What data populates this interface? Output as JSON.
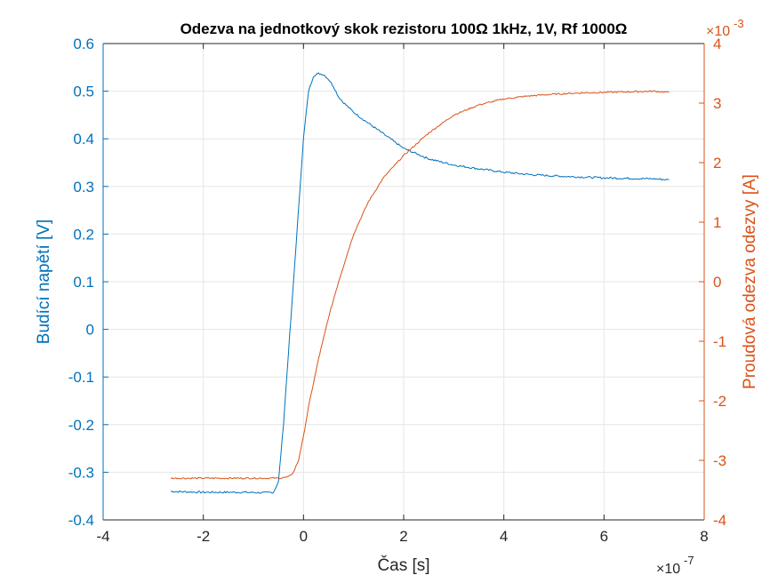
{
  "chart_data": {
    "type": "line",
    "title": "Odezva na jednotkový skok rezistoru 100Ω 1kHz, 1V, Rf 1000Ω",
    "xlabel": "Čas [s]",
    "x_exponent": "×10",
    "x_exponent_power": "-7",
    "xlim": [
      -4,
      8
    ],
    "x_ticks": [
      "-4",
      "-2",
      "0",
      "2",
      "4",
      "6",
      "8"
    ],
    "grid": true,
    "y_left": {
      "label": "Budící napětí [V]",
      "color": "#0072BD",
      "ylim": [
        -0.4,
        0.6
      ],
      "ticks": [
        "0.6",
        "0.5",
        "0.4",
        "0.3",
        "0.2",
        "0.1",
        "0",
        "-0.1",
        "-0.2",
        "-0.3",
        "-0.4"
      ]
    },
    "y_right": {
      "label": "Proudová odezva odezvy [A]",
      "color": "#D95319",
      "exponent": "×10",
      "exponent_power": "-3",
      "ylim": [
        -4,
        4
      ],
      "ticks": [
        "4",
        "3",
        "2",
        "1",
        "0",
        "-1",
        "-2",
        "-3",
        "-4"
      ]
    },
    "series": [
      {
        "axis": "left",
        "color": "#0072BD",
        "x": [
          -2.65,
          -2.4,
          -2.0,
          -1.6,
          -1.2,
          -0.8,
          -0.6,
          -0.5,
          -0.4,
          -0.3,
          -0.2,
          -0.1,
          0.0,
          0.1,
          0.2,
          0.3,
          0.4,
          0.5,
          0.6,
          0.7,
          0.8,
          1.0,
          1.2,
          1.4,
          1.6,
          1.8,
          2.0,
          2.5,
          3.0,
          3.5,
          4.0,
          4.5,
          5.0,
          5.5,
          6.0,
          6.5,
          7.0,
          7.3
        ],
        "y": [
          -0.34,
          -0.341,
          -0.342,
          -0.342,
          -0.342,
          -0.343,
          -0.342,
          -0.32,
          -0.2,
          -0.05,
          0.1,
          0.25,
          0.4,
          0.5,
          0.532,
          0.537,
          0.535,
          0.525,
          0.51,
          0.488,
          0.476,
          0.456,
          0.44,
          0.425,
          0.41,
          0.395,
          0.38,
          0.358,
          0.345,
          0.337,
          0.33,
          0.325,
          0.322,
          0.32,
          0.318,
          0.317,
          0.316,
          0.314
        ]
      },
      {
        "axis": "right",
        "color": "#D95319",
        "x": [
          -2.65,
          -2.0,
          -1.0,
          -0.5,
          -0.3,
          -0.2,
          -0.1,
          0.0,
          0.1,
          0.3,
          0.5,
          0.7,
          1.0,
          1.3,
          1.6,
          2.0,
          2.5,
          3.0,
          3.5,
          4.0,
          4.5,
          5.0,
          5.5,
          6.0,
          6.5,
          7.0,
          7.3
        ],
        "y": [
          -3.3,
          -3.3,
          -3.3,
          -3.3,
          -3.28,
          -3.2,
          -3.0,
          -2.6,
          -2.1,
          -1.3,
          -0.6,
          0.0,
          0.8,
          1.35,
          1.75,
          2.12,
          2.5,
          2.8,
          2.97,
          3.07,
          3.12,
          3.15,
          3.17,
          3.18,
          3.19,
          3.2,
          3.18
        ]
      }
    ]
  }
}
